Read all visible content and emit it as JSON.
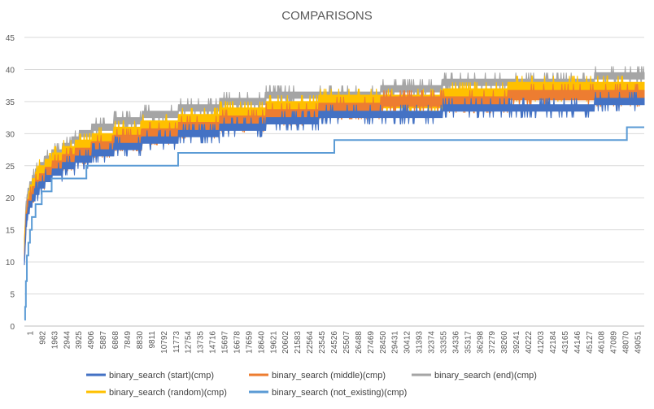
{
  "chart_data": {
    "type": "line",
    "title": "COMPARISONS",
    "xlabel": "",
    "ylabel": "",
    "ylim": [
      0,
      45
    ],
    "y_ticks": [
      0,
      5,
      10,
      15,
      20,
      25,
      30,
      35,
      40,
      45
    ],
    "x_range": [
      1,
      50000
    ],
    "x_tick_labels": [
      "1",
      "982",
      "1963",
      "2944",
      "3925",
      "4906",
      "5887",
      "6868",
      "7849",
      "8830",
      "9811",
      "10792",
      "11773",
      "12754",
      "13735",
      "14716",
      "15697",
      "16678",
      "17659",
      "18640",
      "19621",
      "20602",
      "21583",
      "22564",
      "23545",
      "24526",
      "25507",
      "26488",
      "27469",
      "28450",
      "29431",
      "30412",
      "31393",
      "32374",
      "33355",
      "34336",
      "35317",
      "36298",
      "37279",
      "38260",
      "39241",
      "40222",
      "41203",
      "42184",
      "43165",
      "44146",
      "45127",
      "46108",
      "47089",
      "48070",
      "49051"
    ],
    "grid": "horizontal",
    "legend": "bottom",
    "series": [
      {
        "name": "binary_search (start)(cmp)",
        "color": "#4472C4",
        "points": [
          [
            1,
            10
          ],
          [
            150,
            16
          ],
          [
            300,
            18
          ],
          [
            500,
            19
          ],
          [
            750,
            20
          ],
          [
            1000,
            21
          ],
          [
            1400,
            22
          ],
          [
            1900,
            23
          ],
          [
            2600,
            24
          ],
          [
            3500,
            25
          ],
          [
            4700,
            26
          ],
          [
            6200,
            27
          ],
          [
            8200,
            28
          ],
          [
            10800,
            29
          ],
          [
            14000,
            30
          ],
          [
            17500,
            31
          ],
          [
            21500,
            32
          ],
          [
            26000,
            33
          ],
          [
            31500,
            33
          ],
          [
            36000,
            34
          ],
          [
            42000,
            34
          ],
          [
            50000,
            35
          ]
        ],
        "band": 1
      },
      {
        "name": "binary_search (middle)(cmp)",
        "color": "#ED7D31",
        "points": [
          [
            1,
            11
          ],
          [
            150,
            17
          ],
          [
            300,
            19
          ],
          [
            500,
            20
          ],
          [
            750,
            21
          ],
          [
            1000,
            22
          ],
          [
            1400,
            23
          ],
          [
            1900,
            24
          ],
          [
            2600,
            25
          ],
          [
            3500,
            26
          ],
          [
            4700,
            27
          ],
          [
            6200,
            28
          ],
          [
            8200,
            29
          ],
          [
            10800,
            30
          ],
          [
            14000,
            31
          ],
          [
            17500,
            32
          ],
          [
            21500,
            33
          ],
          [
            26000,
            34
          ],
          [
            31500,
            35
          ],
          [
            36000,
            35
          ],
          [
            42000,
            36
          ],
          [
            50000,
            36
          ]
        ],
        "band": 1.5
      },
      {
        "name": "binary_search (end)(cmp)",
        "color": "#A5A5A5",
        "points": [
          [
            1,
            13
          ],
          [
            150,
            19
          ],
          [
            300,
            21
          ],
          [
            500,
            22
          ],
          [
            750,
            23
          ],
          [
            1000,
            24
          ],
          [
            1400,
            25
          ],
          [
            1900,
            26
          ],
          [
            2600,
            27
          ],
          [
            3500,
            28
          ],
          [
            4700,
            30
          ],
          [
            6200,
            31
          ],
          [
            8200,
            32
          ],
          [
            10800,
            33
          ],
          [
            14000,
            34
          ],
          [
            17500,
            35
          ],
          [
            21500,
            36
          ],
          [
            26000,
            36
          ],
          [
            31500,
            37
          ],
          [
            36000,
            38
          ],
          [
            42000,
            38
          ],
          [
            50000,
            39
          ]
        ],
        "band": 1
      },
      {
        "name": "binary_search (random)(cmp)",
        "color": "#FFC000",
        "points": [
          [
            1,
            12
          ],
          [
            150,
            17
          ],
          [
            300,
            19
          ],
          [
            500,
            21
          ],
          [
            750,
            22
          ],
          [
            1000,
            23
          ],
          [
            1400,
            24
          ],
          [
            1900,
            25
          ],
          [
            2600,
            26
          ],
          [
            3500,
            27
          ],
          [
            4700,
            28
          ],
          [
            6200,
            29
          ],
          [
            8200,
            30
          ],
          [
            10800,
            31
          ],
          [
            14000,
            32
          ],
          [
            17500,
            33
          ],
          [
            21500,
            34
          ],
          [
            26000,
            35
          ],
          [
            31500,
            35
          ],
          [
            36000,
            36
          ],
          [
            42000,
            37
          ],
          [
            50000,
            37
          ]
        ],
        "band": 2
      },
      {
        "name": "binary_search (not_existing)(cmp)",
        "color": "#5B9BD5",
        "points": [
          [
            1,
            1
          ],
          [
            60,
            3
          ],
          [
            120,
            7
          ],
          [
            200,
            11
          ],
          [
            320,
            13
          ],
          [
            450,
            15
          ],
          [
            600,
            17
          ],
          [
            900,
            19
          ],
          [
            1400,
            21
          ],
          [
            2200,
            23
          ],
          [
            5000,
            25
          ],
          [
            12400,
            27
          ],
          [
            25000,
            29
          ],
          [
            48600,
            31
          ],
          [
            50000,
            31
          ]
        ],
        "band": 0
      }
    ]
  }
}
